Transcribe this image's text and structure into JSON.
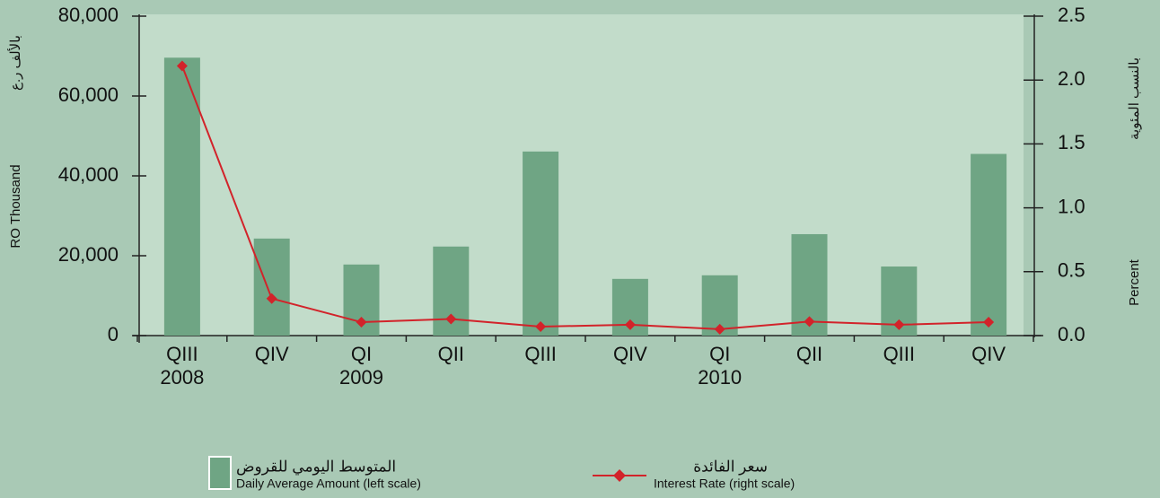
{
  "chart_data": {
    "type": "bar",
    "categories": [
      "QIII",
      "QIV",
      "QI",
      "QII",
      "QIII",
      "QIV",
      "QI",
      "QII",
      "QIII",
      "QIV"
    ],
    "year_labels": [
      "2008",
      null,
      "2009",
      null,
      null,
      null,
      "2010",
      null,
      null,
      null
    ],
    "series": [
      {
        "name": "Daily Average Amount (left scale)",
        "name_ar": "المتوسط اليومي للقروض",
        "type": "bar",
        "color": "#6fa584",
        "values": [
          69600,
          24300,
          17800,
          22300,
          46100,
          14200,
          15100,
          25400,
          17300,
          45500
        ]
      },
      {
        "name": "Interest Rate (right scale)",
        "name_ar": "سعر الفائدة",
        "type": "line",
        "axis": "y2",
        "color": "#d2232a",
        "values": [
          2.11,
          0.29,
          0.105,
          0.13,
          0.07,
          0.085,
          0.05,
          0.11,
          0.085,
          0.105
        ]
      }
    ],
    "ylabel": "RO Thousand",
    "ylabel_ar": "بالألف ر.ع",
    "y2label": "Percent",
    "y2label_ar": "بالنسب المئوية",
    "ylim": [
      0,
      80000
    ],
    "yticks": [
      0,
      {
        "value": 20000,
        "label": "20,000"
      },
      {
        "value": 40000,
        "label": "40,000"
      },
      {
        "value": 60000,
        "label": "60,000"
      },
      {
        "value": 80000,
        "label": "80,000"
      }
    ],
    "y2lim": [
      0,
      2.5
    ],
    "y2ticks": [
      {
        "value": 0,
        "label": "0.0"
      },
      0.5,
      {
        "value": 1,
        "label": "1.0"
      },
      1.5,
      {
        "value": 2,
        "label": "2.0"
      },
      2.5
    ],
    "legend": "bottom",
    "grid": false
  }
}
